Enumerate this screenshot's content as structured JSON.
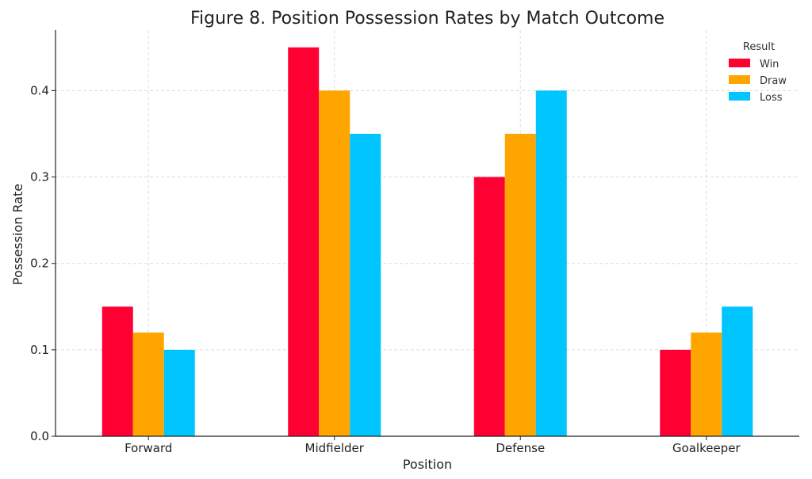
{
  "chart_data": {
    "type": "bar",
    "title": "Figure 8. Position Possession Rates by Match Outcome",
    "xlabel": "Position",
    "ylabel": "Possession Rate",
    "categories": [
      "Forward",
      "Midfielder",
      "Defense",
      "Goalkeeper"
    ],
    "series": [
      {
        "name": "Win",
        "color": "#ff0033",
        "values": [
          0.15,
          0.45,
          0.3,
          0.1
        ]
      },
      {
        "name": "Draw",
        "color": "#ffa500",
        "values": [
          0.12,
          0.4,
          0.35,
          0.12
        ]
      },
      {
        "name": "Loss",
        "color": "#00c5ff",
        "values": [
          0.1,
          0.35,
          0.4,
          0.15
        ]
      }
    ],
    "ylim": [
      0,
      0.47
    ],
    "yticks": [
      "0.0",
      "0.1",
      "0.2",
      "0.3",
      "0.4"
    ],
    "grid": true,
    "legend": {
      "title": "Result",
      "placement": "top-right"
    }
  }
}
